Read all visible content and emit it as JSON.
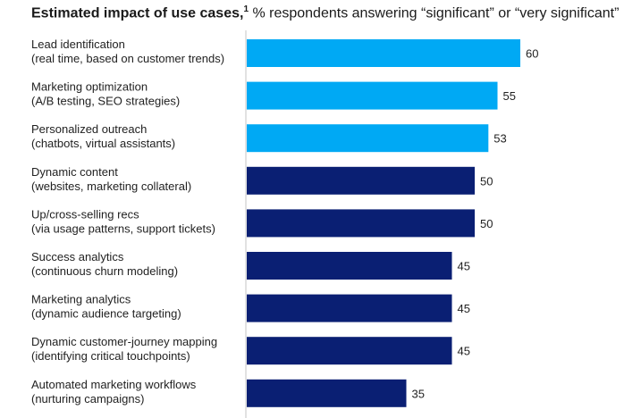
{
  "chart_data": {
    "type": "bar",
    "orientation": "horizontal",
    "title": "Estimated impact of use cases,",
    "title_footnote": "1",
    "subtitle": "% respondents answering “significant” or “very significant”",
    "categories": [
      [
        "Lead identification",
        "(real time, based on customer trends)"
      ],
      [
        "Marketing optimization",
        "(A/B testing, SEO strategies)"
      ],
      [
        "Personalized outreach",
        "(chatbots, virtual assistants)"
      ],
      [
        "Dynamic content",
        "(websites, marketing collateral)"
      ],
      [
        "Up/cross-selling recs",
        "(via usage patterns, support tickets)"
      ],
      [
        "Success analytics",
        "(continuous churn modeling)"
      ],
      [
        "Marketing analytics",
        "(dynamic audience targeting)"
      ],
      [
        "Dynamic customer-journey mapping",
        "(identifying critical touchpoints)"
      ],
      [
        "Automated marketing workflows",
        "(nurturing campaigns)"
      ]
    ],
    "values": [
      60,
      55,
      53,
      50,
      50,
      45,
      45,
      45,
      35
    ],
    "highlight": [
      true,
      true,
      true,
      false,
      false,
      false,
      false,
      false,
      false
    ],
    "colors": {
      "highlight": "#00a9f4",
      "default": "#0a1f73",
      "axis": "#d9d9d9"
    },
    "xlim": [
      0,
      60
    ],
    "grid": false,
    "legend": "none",
    "data_labels": true
  }
}
